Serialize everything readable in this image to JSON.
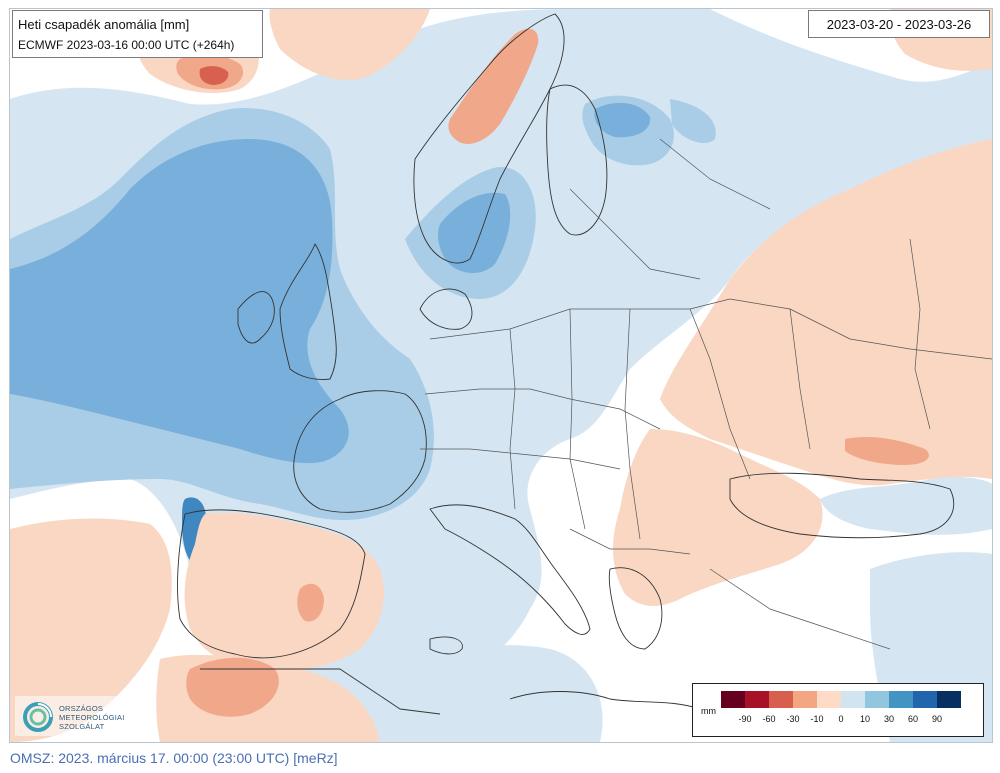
{
  "header": {
    "title": "Heti csapadék anomália [mm]",
    "run": "ECMWF 2023-03-16 00:00 UTC (+264h)",
    "period": "2023-03-20 - 2023-03-26"
  },
  "legend": {
    "unit": "mm",
    "colors": [
      "#67001f",
      "#a81228",
      "#d6604d",
      "#f4a582",
      "#fddbc7",
      "#d1e5f0",
      "#92c5de",
      "#4393c3",
      "#2166ac",
      "#053061"
    ],
    "ticks": [
      "-90",
      "-60",
      "-30",
      "-10",
      "0",
      "10",
      "30",
      "60",
      "90"
    ]
  },
  "logo": {
    "lines": [
      "ORSZÁGOS",
      "METEOROLÓGIAI",
      "SZOLGÁLAT"
    ]
  },
  "footer": "OMSZ: 2023. március 17. 00:00 (23:00 UTC) [meRz]",
  "colors": {
    "dry_light": "#f9d7c3",
    "dry_mid": "#f1a88a",
    "dry_strong": "#d7604e",
    "wet_light": "#d5e6f2",
    "wet_mid": "#a9cde6",
    "wet_strong": "#79b0db",
    "wet_dark": "#3f87c1"
  }
}
